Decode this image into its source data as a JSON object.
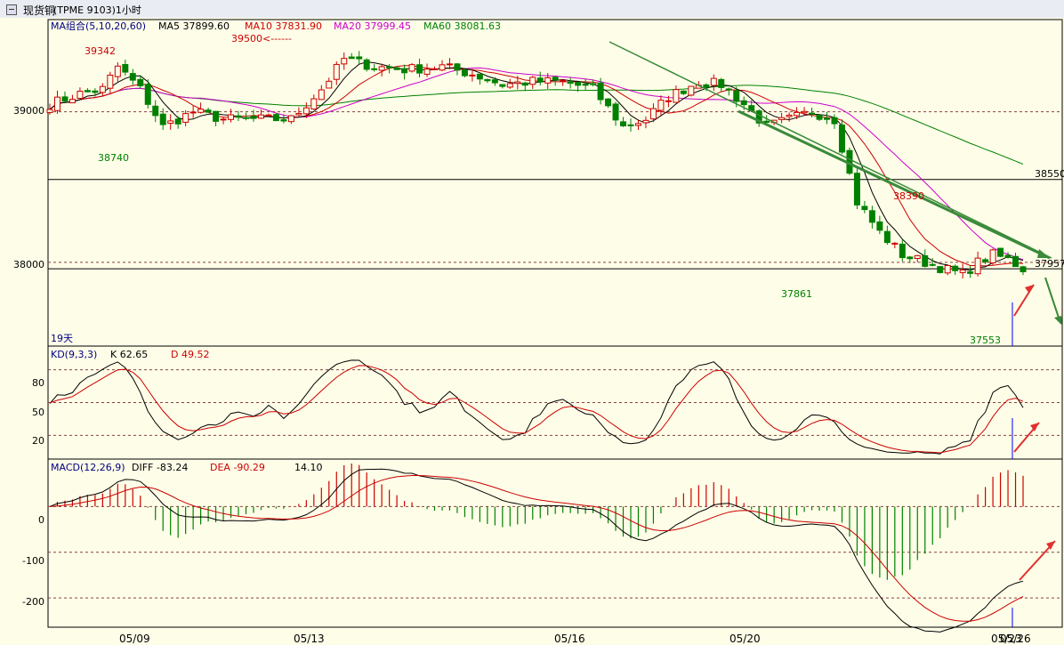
{
  "window": {
    "title": "现货铜",
    "info": "(TPME 9103)1小时"
  },
  "colors": {
    "background": "#fefee8",
    "up": "#cc0000",
    "down": "#008000",
    "ma5": "#000000",
    "ma10": "#cc0000",
    "ma20": "#cc00cc",
    "ma60": "#008000",
    "kd_k": "#000000",
    "kd_d": "#cc0000",
    "macd_diff": "#000000",
    "macd_dea": "#cc0000",
    "trendline": "#3a8a3a",
    "annotation_arrow": "#e03030"
  },
  "price_panel": {
    "legend": [
      {
        "text": "MA组合(5,10,20,60)",
        "color": "#000080"
      },
      {
        "text": "MA5 37899.60",
        "color": "#000000"
      },
      {
        "text": "MA10 37831.90",
        "color": "#cc0000"
      },
      {
        "text": "MA20 37999.45",
        "color": "#cc00cc"
      },
      {
        "text": "MA60 38081.63",
        "color": "#008000"
      }
    ],
    "y_ticks": [
      "39000",
      "38000"
    ],
    "right_labels": [
      "38550",
      "37957"
    ],
    "period_label": "19天",
    "annotations": [
      {
        "text": "39342",
        "color": "#cc0000"
      },
      {
        "text": "39500<------",
        "color": "#cc0000"
      },
      {
        "text": "38740",
        "color": "#008000"
      },
      {
        "text": "38390",
        "color": "#cc0000"
      },
      {
        "text": "37861",
        "color": "#008000"
      },
      {
        "text": "37553",
        "color": "#008000"
      }
    ]
  },
  "kd_panel": {
    "legend": [
      {
        "text": "KD(9,3,3)",
        "color": "#000080"
      },
      {
        "text": "K  62.65",
        "color": "#000000"
      },
      {
        "text": "D  49.52",
        "color": "#cc0000"
      }
    ],
    "y_ticks": [
      "80",
      "50",
      "20"
    ]
  },
  "macd_panel": {
    "legend": [
      {
        "text": "MACD(12,26,9)",
        "color": "#000080"
      },
      {
        "text": "DIFF  -83.24",
        "color": "#000000"
      },
      {
        "text": "DEA  -90.29",
        "color": "#cc0000"
      },
      {
        "text": "14.10",
        "color": "#000000"
      }
    ],
    "y_ticks": [
      "0",
      "-100",
      "-200"
    ]
  },
  "x_axis": {
    "labels": [
      "05/09",
      "05/13",
      "05/16",
      "05/20",
      "05/26"
    ],
    "overlap_label": "05/23"
  },
  "chart_data": [
    {
      "type": "candlestick",
      "title": "现货铜 (TPME 9103)1小时",
      "ylim": [
        37450,
        39600
      ],
      "bars": 130,
      "close_keypoints": [
        {
          "bar": 0,
          "close": 39050
        },
        {
          "bar": 4,
          "close": 39120
        },
        {
          "bar": 7,
          "close": 39150
        },
        {
          "bar": 9,
          "close": 39300
        },
        {
          "bar": 12,
          "close": 39150
        },
        {
          "bar": 15,
          "close": 38900
        },
        {
          "bar": 19,
          "close": 39000
        },
        {
          "bar": 23,
          "close": 38950
        },
        {
          "bar": 27,
          "close": 38950
        },
        {
          "bar": 32,
          "close": 38950
        },
        {
          "bar": 36,
          "close": 39150
        },
        {
          "bar": 39,
          "close": 39350
        },
        {
          "bar": 43,
          "close": 39300
        },
        {
          "bar": 47,
          "close": 39280
        },
        {
          "bar": 52,
          "close": 39300
        },
        {
          "bar": 56,
          "close": 39250
        },
        {
          "bar": 60,
          "close": 39180
        },
        {
          "bar": 64,
          "close": 39200
        },
        {
          "bar": 68,
          "close": 39200
        },
        {
          "bar": 72,
          "close": 39150
        },
        {
          "bar": 76,
          "close": 38900
        },
        {
          "bar": 79,
          "close": 38950
        },
        {
          "bar": 82,
          "close": 39100
        },
        {
          "bar": 86,
          "close": 39200
        },
        {
          "bar": 89,
          "close": 39180
        },
        {
          "bar": 92,
          "close": 39050
        },
        {
          "bar": 95,
          "close": 38900
        },
        {
          "bar": 98,
          "close": 38950
        },
        {
          "bar": 101,
          "close": 39000
        },
        {
          "bar": 104,
          "close": 38950
        },
        {
          "bar": 107,
          "close": 38400
        },
        {
          "bar": 110,
          "close": 38200
        },
        {
          "bar": 113,
          "close": 38050
        },
        {
          "bar": 116,
          "close": 38000
        },
        {
          "bar": 119,
          "close": 37950
        },
        {
          "bar": 121,
          "close": 37920
        },
        {
          "bar": 123,
          "close": 38000
        },
        {
          "bar": 125,
          "close": 38050
        },
        {
          "bar": 127,
          "close": 38020
        },
        {
          "bar": 129,
          "close": 37957
        }
      ]
    },
    {
      "type": "line",
      "title": "KD(9,3,3)",
      "ylim": [
        0,
        100
      ],
      "series": [
        {
          "name": "K",
          "last": 62.65
        },
        {
          "name": "D",
          "last": 49.52
        }
      ]
    },
    {
      "type": "bar+line",
      "title": "MACD(12,26,9)",
      "ylim": [
        -260,
        100
      ],
      "series": [
        {
          "name": "DIFF",
          "last": -83.24
        },
        {
          "name": "DEA",
          "last": -90.29
        },
        {
          "name": "MACD",
          "last": 14.1
        }
      ]
    }
  ]
}
